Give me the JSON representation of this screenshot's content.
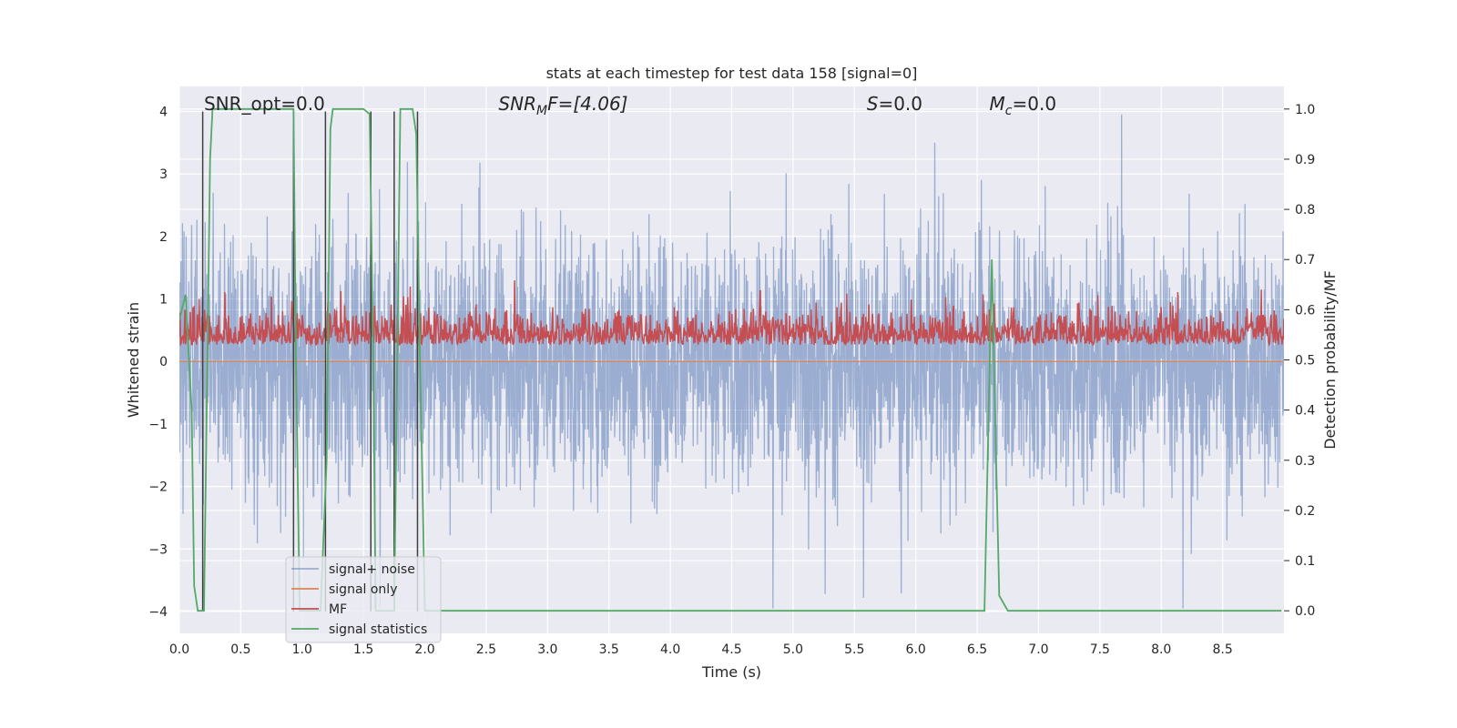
{
  "chart_data": {
    "type": "line",
    "title": "stats at each timestep for test data 158 [signal=0]",
    "xlabel": "Time (s)",
    "ylabel": "Whitened strain",
    "ylabel_right": "Detection probability/MF",
    "xlim": [
      0,
      9.0
    ],
    "ylim": [
      -4.35,
      4.4
    ],
    "ylim_right": [
      -0.045,
      1.045
    ],
    "xticks": [
      0.0,
      0.5,
      1.0,
      1.5,
      2.0,
      2.5,
      3.0,
      3.5,
      4.0,
      4.5,
      5.0,
      5.5,
      6.0,
      6.5,
      7.0,
      7.5,
      8.0,
      8.5
    ],
    "xtick_labels": [
      "0.0",
      "0.5",
      "1.0",
      "1.5",
      "2.0",
      "2.5",
      "3.0",
      "3.5",
      "4.0",
      "4.5",
      "5.0",
      "5.5",
      "6.0",
      "6.5",
      "7.0",
      "7.5",
      "8.0",
      "8.5"
    ],
    "yticks": [
      -4,
      -3,
      -2,
      -1,
      0,
      1,
      2,
      3,
      4
    ],
    "ytick_labels": [
      "−4",
      "−3",
      "−2",
      "−1",
      "0",
      "1",
      "2",
      "3",
      "4"
    ],
    "yticks_right": [
      0.0,
      0.1,
      0.2,
      0.3,
      0.4,
      0.5,
      0.6,
      0.7,
      0.8,
      0.9,
      1.0
    ],
    "ytick_labels_right": [
      "0.0",
      "0.1",
      "0.2",
      "0.3",
      "0.4",
      "0.5",
      "0.6",
      "0.7",
      "0.8",
      "0.9",
      "1.0"
    ],
    "grid": true,
    "legend_position": "lower-left",
    "annotations": {
      "snr_opt": "SNR_opt=0.0",
      "snr_mf_main": "SNR",
      "snr_mf_sub": "M",
      "snr_mf_rest": "F=[4.06]",
      "s_main": "S",
      "s_rest": "=0.0",
      "mc_main": "M",
      "mc_sub": "c",
      "mc_rest": "=0.0"
    },
    "series": [
      {
        "name": "signal+ noise",
        "color": "#4c72b0",
        "alpha": 0.5,
        "axis": "left",
        "note": "dense noise trace, approx uniform noise within [-2.6, 2.6] with spikes to about +/-4"
      },
      {
        "name": "signal only",
        "color": "#dd8452",
        "axis": "left",
        "x": [
          0.0,
          9.0
        ],
        "y": [
          0.0,
          0.0
        ]
      },
      {
        "name": "MF",
        "color": "#c44e52",
        "axis": "right",
        "note": "dense trace oscillating between about 0.5 and 0.65"
      },
      {
        "name": "signal statistics",
        "color": "#55a868",
        "axis": "right",
        "x": [
          0.0,
          0.05,
          0.1,
          0.12,
          0.15,
          0.2,
          0.25,
          0.27,
          0.5,
          0.75,
          0.93,
          0.95,
          0.98,
          1.05,
          1.15,
          1.2,
          1.23,
          1.25,
          1.3,
          1.5,
          1.55,
          1.58,
          1.6,
          1.65,
          1.75,
          1.8,
          1.85,
          1.9,
          1.93,
          1.96,
          2.0,
          2.5,
          3.5,
          4.5,
          5.5,
          6.5,
          6.56,
          6.62,
          6.65,
          6.68,
          6.75,
          7.0,
          8.0,
          8.98
        ],
        "y": [
          0.58,
          0.63,
          0.4,
          0.05,
          0.0,
          0.0,
          0.9,
          1.0,
          1.0,
          1.0,
          1.0,
          0.5,
          0.0,
          0.0,
          0.0,
          0.3,
          0.96,
          1.0,
          1.0,
          1.0,
          0.99,
          0.5,
          0.0,
          0.0,
          0.0,
          1.0,
          1.0,
          1.0,
          0.95,
          0.5,
          0.0,
          0.0,
          0.0,
          0.0,
          0.0,
          0.0,
          0.0,
          0.7,
          0.35,
          0.03,
          0.0,
          0.0,
          0.0,
          0.0
        ]
      },
      {
        "name": "",
        "color": "#404040",
        "axis": "left",
        "note": "thin vertical markers from -4 to 4",
        "x": [
          0.19,
          0.93,
          1.19,
          1.56,
          1.75,
          1.94
        ]
      }
    ]
  }
}
